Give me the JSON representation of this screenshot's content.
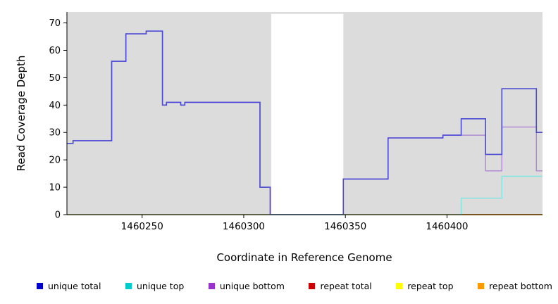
{
  "chart_data": {
    "type": "line",
    "step": true,
    "title": "",
    "xlabel": "Coordinate in Reference Genome",
    "ylabel": "Read Coverage Depth",
    "xlim": [
      1460213,
      1460447
    ],
    "ylim": [
      0,
      74
    ],
    "xticks": [
      1460250,
      1460300,
      1460350,
      1460400
    ],
    "yticks": [
      0,
      10,
      20,
      30,
      40,
      50,
      60,
      70
    ],
    "grid": false,
    "plot_background": "#dcdcdc",
    "gap_region": {
      "x_start": 1460313.5,
      "x_end": 1460349,
      "y_max": 73.3,
      "color": "#ffffff"
    },
    "series": [
      {
        "name": "repeat total",
        "color": "#cc0000",
        "width": 1.2,
        "points": [
          [
            1460213,
            0
          ]
        ]
      },
      {
        "name": "repeat top",
        "color": "#ffff00",
        "width": 1.2,
        "points": [
          [
            1460213,
            0
          ]
        ]
      },
      {
        "name": "repeat bottom",
        "color": "#ff8c00",
        "width": 1.5,
        "points": [
          [
            1460213,
            0
          ]
        ]
      },
      {
        "name": "unique bottom",
        "color": "#b38bd6",
        "width": 1.5,
        "points": [
          [
            1460213,
            26
          ],
          [
            1460216,
            27
          ],
          [
            1460235,
            56
          ],
          [
            1460242,
            66
          ],
          [
            1460252,
            67
          ],
          [
            1460260,
            40
          ],
          [
            1460262,
            41
          ],
          [
            1460269,
            40
          ],
          [
            1460271,
            41
          ],
          [
            1460308,
            10
          ],
          [
            1460313,
            0
          ],
          [
            1460349,
            13
          ],
          [
            1460371,
            28
          ],
          [
            1460398,
            29
          ],
          [
            1460419,
            16
          ],
          [
            1460427,
            32
          ],
          [
            1460444,
            16
          ]
        ]
      },
      {
        "name": "unique total",
        "color": "#4a4ad2",
        "width": 1.6,
        "points": [
          [
            1460213,
            26
          ],
          [
            1460216,
            27
          ],
          [
            1460235,
            56
          ],
          [
            1460242,
            66
          ],
          [
            1460252,
            67
          ],
          [
            1460260,
            40
          ],
          [
            1460262,
            41
          ],
          [
            1460269,
            40
          ],
          [
            1460271,
            41
          ],
          [
            1460308,
            10
          ],
          [
            1460313,
            0
          ],
          [
            1460349,
            13
          ],
          [
            1460371,
            28
          ],
          [
            1460398,
            29
          ],
          [
            1460407,
            35
          ],
          [
            1460419,
            22
          ],
          [
            1460427,
            46
          ],
          [
            1460444,
            30
          ]
        ]
      },
      {
        "name": "unique top",
        "color": "#7fe6e0",
        "width": 1.4,
        "points": [
          [
            1460213,
            0
          ],
          [
            1460407,
            6
          ],
          [
            1460427,
            14
          ]
        ]
      }
    ],
    "legend_position": "bottom",
    "legend": [
      {
        "label": "unique total",
        "color": "#0000cc"
      },
      {
        "label": "unique top",
        "color": "#00cccc"
      },
      {
        "label": "unique bottom",
        "color": "#9933cc"
      },
      {
        "label": "repeat total",
        "color": "#cc0000"
      },
      {
        "label": "repeat top",
        "color": "#ffff00"
      },
      {
        "label": "repeat bottom",
        "color": "#ff9900"
      }
    ]
  }
}
